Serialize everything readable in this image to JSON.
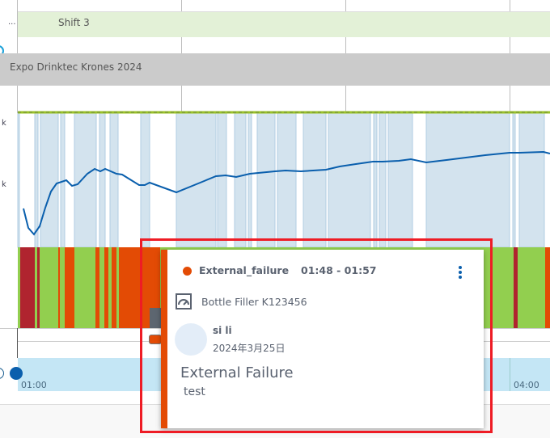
{
  "rows": {
    "shift_label": "Shift 3",
    "event_label": "Expo Drinktec Krones 2024",
    "ellipsis": "...",
    "y_labels": [
      "k",
      "k"
    ]
  },
  "timeline": {
    "ticks": [
      "01:00",
      "04:00"
    ]
  },
  "colors": {
    "running": "#92cf4f",
    "external_failure": "#e34b05",
    "failure": "#b0242f",
    "idle": "#5d6670",
    "bars": "#d3e3ee",
    "line": "#0a5fad",
    "highlight": "#ee1c25"
  },
  "popup": {
    "status": "External_failure",
    "time_range": "01:48 - 01:57",
    "machine_icon": "gauge-icon",
    "machine": "Bottle Filler K123456",
    "user": "si li",
    "date": "2024年3月25日",
    "title": "External Failure",
    "comment": "test",
    "menu_icon": "more-vertical-icon"
  }
}
